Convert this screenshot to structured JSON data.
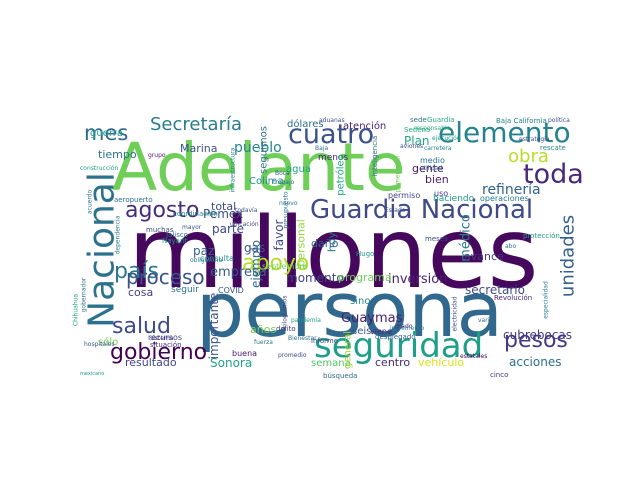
{
  "word_cloud": {
    "palette": "viridis",
    "words": [
      {
        "text": "millones",
        "color": "#46085c"
      },
      {
        "text": "persona",
        "color": "#31688e"
      },
      {
        "text": "Adelante",
        "color": "#6ece58"
      },
      {
        "text": "seguridad",
        "color": "#1f9e89"
      },
      {
        "text": "Nacional",
        "color": "#2c728e"
      },
      {
        "text": "Guardia Nacional",
        "color": "#3e4a89"
      },
      {
        "text": "elemento",
        "color": "#26828e"
      },
      {
        "text": "cuatro",
        "color": "#3b528b"
      },
      {
        "text": "toda",
        "color": "#482878"
      },
      {
        "text": "país",
        "color": "#2a788e"
      },
      {
        "text": "salud",
        "color": "#3e4989"
      },
      {
        "text": "gobierno",
        "color": "#440154"
      },
      {
        "text": "apoyo",
        "color": "#b5de2b"
      },
      {
        "text": "pesos",
        "color": "#443983"
      },
      {
        "text": "unidades",
        "color": "#35608d"
      },
      {
        "text": "agosto",
        "color": "#472c7a"
      },
      {
        "text": "proceso",
        "color": "#3b528b"
      },
      {
        "text": "mes",
        "color": "#31688e"
      },
      {
        "text": "Secretaría",
        "color": "#287d8e"
      },
      {
        "text": "obra",
        "color": "#b8de29"
      },
      {
        "text": "refinería",
        "color": "#33638d"
      },
      {
        "text": "inversión",
        "color": "#482173"
      },
      {
        "text": "médico",
        "color": "#2a788e"
      },
      {
        "text": "Guaymas",
        "color": "#481f70"
      },
      {
        "text": "empresa",
        "color": "#375b8d"
      },
      {
        "text": "momento",
        "color": "#414487"
      },
      {
        "text": "programa",
        "color": "#73d055"
      },
      {
        "text": "secretario",
        "color": "#3e4a89"
      },
      {
        "text": "acciones",
        "color": "#2d708e"
      },
      {
        "text": "cubrebocas",
        "color": "#453781"
      },
      {
        "text": "resultado",
        "color": "#3f4788"
      },
      {
        "text": "Sonora",
        "color": "#20a386"
      },
      {
        "text": "vehículo",
        "color": "#dde318"
      },
      {
        "text": "centro",
        "color": "#482677"
      },
      {
        "text": "semana",
        "color": "#52c569"
      },
      {
        "text": "Plan",
        "color": "#22a884"
      },
      {
        "text": "atención",
        "color": "#482475"
      },
      {
        "text": "dólares",
        "color": "#2e6e8e"
      },
      {
        "text": "pueblo",
        "color": "#25858e"
      },
      {
        "text": "Marina",
        "color": "#3a548c"
      },
      {
        "text": "tiempo",
        "color": "#2c718e"
      },
      {
        "text": "guerra",
        "color": "#1e9b8a"
      },
      {
        "text": "ejemplo",
        "color": "#2d708e"
      },
      {
        "text": "favor",
        "color": "#3f4889"
      },
      {
        "text": "personal",
        "color": "#95d840"
      },
      {
        "text": "Pemex",
        "color": "#3d4d8a"
      },
      {
        "text": "parte",
        "color": "#404688"
      },
      {
        "text": "total",
        "color": "#3e4c8a"
      },
      {
        "text": "gas",
        "color": "#39568c"
      },
      {
        "text": "paz",
        "color": "#34618d"
      },
      {
        "text": "daño",
        "color": "#32658e"
      },
      {
        "text": "hoy",
        "color": "#2b748e"
      },
      {
        "text": "avance",
        "color": "#443a83"
      },
      {
        "text": "gente",
        "color": "#470e61"
      },
      {
        "text": "bien",
        "color": "#481a6c"
      },
      {
        "text": "cosa",
        "color": "#433e85"
      },
      {
        "text": "seguir",
        "color": "#2d718e"
      },
      {
        "text": "importante",
        "color": "#3b528b"
      },
      {
        "text": "años",
        "color": "#73d055"
      },
      {
        "text": "sólo",
        "color": "#7ad151"
      },
      {
        "text": "sino",
        "color": "#25848e"
      },
      {
        "text": "seis",
        "color": "#39568c"
      },
      {
        "text": "general",
        "color": "#a0da39"
      },
      {
        "text": "agua",
        "color": "#1fa187"
      },
      {
        "text": "Colima",
        "color": "#20928c"
      },
      {
        "text": "menos",
        "color": "#482576"
      },
      {
        "text": "seguimos",
        "color": "#2c728e"
      },
      {
        "text": "petróleo",
        "color": "#22a785"
      },
      {
        "text": "haciendo",
        "color": "#1f9a8a"
      },
      {
        "text": "operaciones",
        "color": "#29798e"
      },
      {
        "text": "Baja California",
        "color": "#26828e"
      },
      {
        "text": "rescate",
        "color": "#23888e"
      },
      {
        "text": "política",
        "color": "#3b528b"
      },
      {
        "text": "construcción",
        "color": "#1e9c89"
      },
      {
        "text": "recursos",
        "color": "#3d4e8a"
      },
      {
        "text": "situación",
        "color": "#472d7b"
      },
      {
        "text": "hospitales",
        "color": "#38588c"
      },
      {
        "text": "muchas",
        "color": "#3c4f8a"
      },
      {
        "text": "mexicano",
        "color": "#1f968b"
      },
      {
        "text": "Revolución",
        "color": "#482979"
      },
      {
        "text": "buena",
        "color": "#481769"
      },
      {
        "text": "búsqueda",
        "color": "#306a8e"
      },
      {
        "text": "cinco",
        "color": "#453781"
      },
      {
        "text": "viene",
        "color": "#482475"
      },
      {
        "text": "promedio",
        "color": "#3c4f8a"
      },
      {
        "text": "protección",
        "color": "#1fa088"
      },
      {
        "text": "aeropuerto",
        "color": "#2d708e"
      },
      {
        "text": "sistema",
        "color": "#482878"
      },
      {
        "text": "Nayarit",
        "color": "#1f9e89"
      },
      {
        "text": "Jalisco",
        "color": "#2d708e"
      },
      {
        "text": "COVID",
        "color": "#39568c"
      },
      {
        "text": "consulta",
        "color": "#21908d"
      },
      {
        "text": "septiembre",
        "color": "#6ece58"
      },
      {
        "text": "Hugo",
        "color": "#1f998a"
      },
      {
        "text": "meses",
        "color": "#3e4a89"
      },
      {
        "text": "uso",
        "color": "#453882"
      },
      {
        "text": "medio",
        "color": "#2a768e"
      },
      {
        "text": "permiso",
        "color": "#414487"
      },
      {
        "text": "informe",
        "color": "#404588"
      },
      {
        "text": "delito",
        "color": "#433d84"
      },
      {
        "text": "grupo",
        "color": "#481b6d"
      },
      {
        "text": "estatales",
        "color": "#440154"
      },
      {
        "text": "inteligencia",
        "color": "#2e6f8e"
      },
      {
        "text": "primer nivel",
        "color": "#6ccd5a"
      },
      {
        "text": "desplegado",
        "color": "#32648e"
      },
      {
        "text": "fuerza",
        "color": "#29798e"
      },
      {
        "text": "mayor",
        "color": "#3b528b"
      },
      {
        "text": "Boca",
        "color": "#355f8d"
      },
      {
        "text": "Baja",
        "color": "#2f6c8e"
      },
      {
        "text": "trabajo",
        "color": "#2e6e8e"
      },
      {
        "text": "sede",
        "color": "#2c738e"
      },
      {
        "text": "aduanas",
        "color": "#3e4a89"
      },
      {
        "text": "nuevo",
        "color": "#2a778e"
      },
      {
        "text": "Sedena",
        "color": "#25ac82"
      },
      {
        "text": "Guardia",
        "color": "#27ad81"
      },
      {
        "text": "responsable",
        "color": "#29af7f"
      },
      {
        "text": "carretera",
        "color": "#25848e"
      },
      {
        "text": "estrategia",
        "color": "#3e4989"
      },
      {
        "text": "todavía",
        "color": "#3b518b"
      },
      {
        "text": "presupuesto",
        "color": "#2c718e"
      },
      {
        "text": "infraestructura",
        "color": "#25858e"
      },
      {
        "text": "coordinación",
        "color": "#228b8d"
      },
      {
        "text": "obligatorio",
        "color": "#2a768e"
      },
      {
        "text": "Chihuahua",
        "color": "#1fa287"
      },
      {
        "text": "Bienestar",
        "color": "#2f6b8e"
      },
      {
        "text": "pandemia",
        "color": "#1e9c89"
      },
      {
        "text": "kilogramos",
        "color": "#3f4788"
      },
      {
        "text": "dependencia",
        "color": "#2b758e"
      },
      {
        "text": "gobernador",
        "color": "#2d718e"
      },
      {
        "text": "acuerdo",
        "color": "#2c718e"
      },
      {
        "text": "aviones",
        "color": "#3e4a89"
      },
      {
        "text": "especialidad",
        "color": "#287c8e"
      },
      {
        "text": "grado",
        "color": "#472a7a"
      },
      {
        "text": "ejecución",
        "color": "#1e9d89"
      },
      {
        "text": "Estado",
        "color": "#3c4f8a"
      },
      {
        "text": "electricidad",
        "color": "#3f4889"
      },
      {
        "text": "utilidad",
        "color": "#2e6d8e"
      },
      {
        "text": "varias",
        "color": "#31688e"
      },
      {
        "text": "incremento",
        "color": "#2b748e"
      },
      {
        "text": "ubicación",
        "color": "#3e4c8a"
      },
      {
        "text": "abo",
        "color": "#2e6e8e"
      }
    ]
  }
}
